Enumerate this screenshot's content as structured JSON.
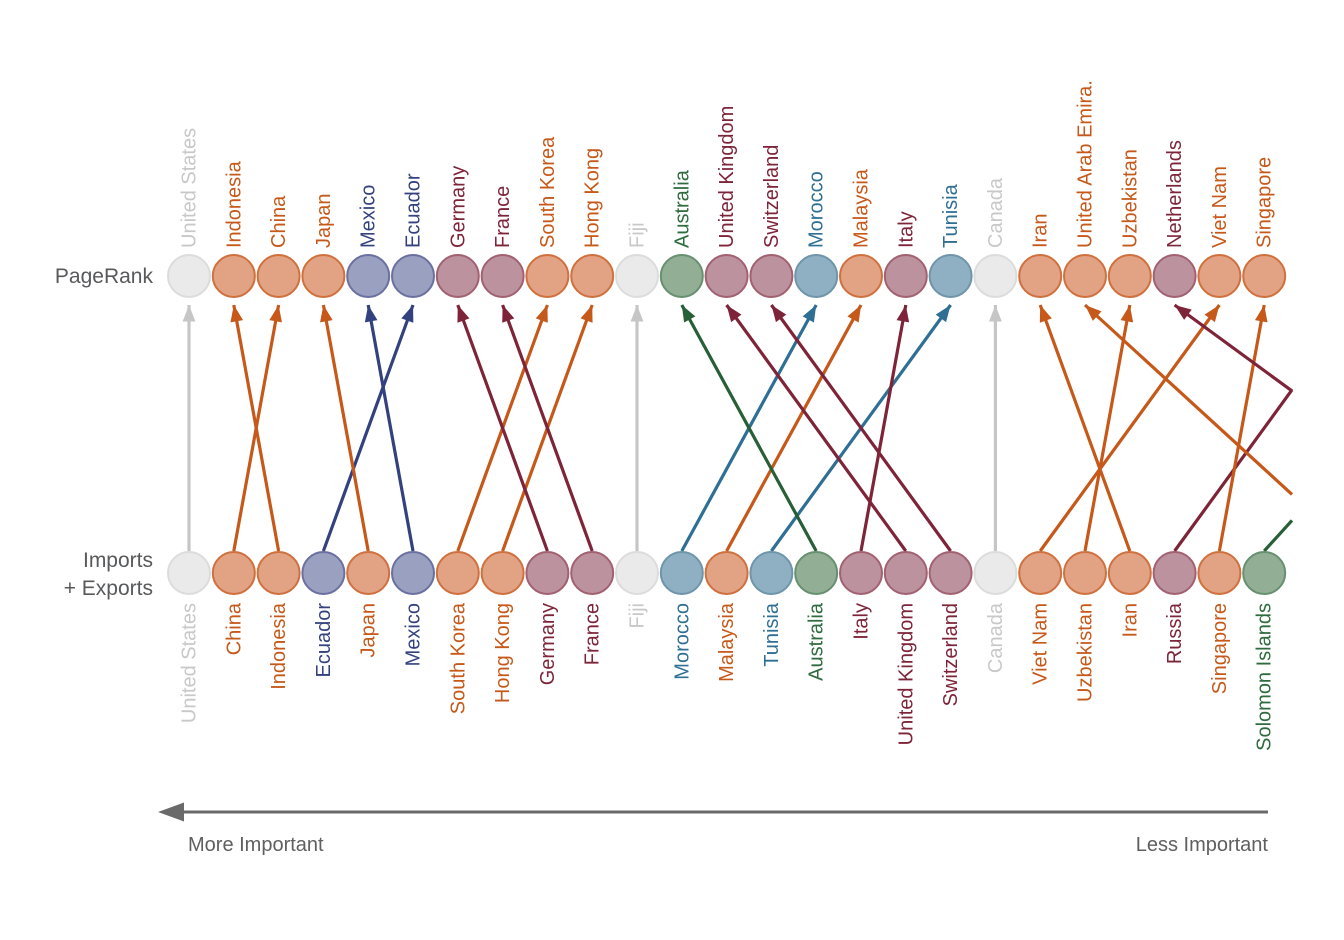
{
  "rows": {
    "top": {
      "label": "PageRank"
    },
    "bottom": {
      "label_line1": "Imports",
      "label_line2": "+ Exports"
    }
  },
  "axis": {
    "left_label": "More Important",
    "right_label": "Less Important"
  },
  "palette": {
    "orange": {
      "fill": "#E2A384",
      "stroke": "#D0703E",
      "text": "#C6591A",
      "line": "#C6591A"
    },
    "navy": {
      "fill": "#9AA0C0",
      "stroke": "#6B70A0",
      "text": "#33427F",
      "line": "#33427F"
    },
    "maroon": {
      "fill": "#BC929F",
      "stroke": "#A26170",
      "text": "#7E2438",
      "line": "#7E2438"
    },
    "teal": {
      "fill": "#8FB0C3",
      "stroke": "#6E95A9",
      "text": "#2E6F93",
      "line": "#2E6F93"
    },
    "green": {
      "fill": "#92AE94",
      "stroke": "#679070",
      "text": "#2E6B3E",
      "line": "#275F36"
    },
    "gray": {
      "fill": "#EAEAEA",
      "stroke": "#DCDCDC",
      "text": "#C8C8C8",
      "line": "#C6C6C6"
    }
  },
  "chart_data": {
    "type": "slope",
    "title": "",
    "row_labels": [
      "PageRank",
      "Imports + Exports"
    ],
    "axis_annotation": {
      "left": "More Important",
      "right": "Less Important"
    },
    "pagerank_ranking": [
      {
        "label": "United States",
        "color": "gray"
      },
      {
        "label": "Indonesia",
        "color": "orange"
      },
      {
        "label": "China",
        "color": "orange"
      },
      {
        "label": "Japan",
        "color": "orange"
      },
      {
        "label": "Mexico",
        "color": "navy"
      },
      {
        "label": "Ecuador",
        "color": "navy"
      },
      {
        "label": "Germany",
        "color": "maroon"
      },
      {
        "label": "France",
        "color": "maroon"
      },
      {
        "label": "South Korea",
        "color": "orange"
      },
      {
        "label": "Hong Kong",
        "color": "orange"
      },
      {
        "label": "Fiji",
        "color": "gray"
      },
      {
        "label": "Australia",
        "color": "green"
      },
      {
        "label": "United Kingdom",
        "color": "maroon"
      },
      {
        "label": "Switzerland",
        "color": "maroon"
      },
      {
        "label": "Morocco",
        "color": "teal"
      },
      {
        "label": "Malaysia",
        "color": "orange"
      },
      {
        "label": "Italy",
        "color": "maroon"
      },
      {
        "label": "Tunisia",
        "color": "teal"
      },
      {
        "label": "Canada",
        "color": "gray"
      },
      {
        "label": "Iran",
        "color": "orange"
      },
      {
        "label": "United Arab Emira.",
        "color": "orange"
      },
      {
        "label": "Uzbekistan",
        "color": "orange"
      },
      {
        "label": "Netherlands",
        "color": "maroon"
      },
      {
        "label": "Viet Nam",
        "color": "orange"
      },
      {
        "label": "Singapore",
        "color": "orange"
      }
    ],
    "imports_exports_ranking": [
      {
        "label": "United States",
        "color": "gray"
      },
      {
        "label": "China",
        "color": "orange"
      },
      {
        "label": "Indonesia",
        "color": "orange"
      },
      {
        "label": "Ecuador",
        "color": "navy"
      },
      {
        "label": "Japan",
        "color": "orange"
      },
      {
        "label": "Mexico",
        "color": "navy"
      },
      {
        "label": "South Korea",
        "color": "orange"
      },
      {
        "label": "Hong Kong",
        "color": "orange"
      },
      {
        "label": "Germany",
        "color": "maroon"
      },
      {
        "label": "France",
        "color": "maroon"
      },
      {
        "label": "Fiji",
        "color": "gray"
      },
      {
        "label": "Morocco",
        "color": "teal"
      },
      {
        "label": "Malaysia",
        "color": "orange"
      },
      {
        "label": "Tunisia",
        "color": "teal"
      },
      {
        "label": "Australia",
        "color": "green"
      },
      {
        "label": "Italy",
        "color": "maroon"
      },
      {
        "label": "United Kingdom",
        "color": "maroon"
      },
      {
        "label": "Switzerland",
        "color": "maroon"
      },
      {
        "label": "Canada",
        "color": "gray"
      },
      {
        "label": "Viet Nam",
        "color": "orange"
      },
      {
        "label": "Uzbekistan",
        "color": "orange"
      },
      {
        "label": "Iran",
        "color": "orange"
      },
      {
        "label": "Russia",
        "color": "maroon"
      },
      {
        "label": "Singapore",
        "color": "orange"
      },
      {
        "label": "Solomon Islands",
        "color": "green"
      }
    ],
    "links": [
      {
        "country": "United States",
        "color": "gray",
        "from": 1,
        "to": 1
      },
      {
        "country": "China",
        "color": "orange",
        "from": 2,
        "to": 3
      },
      {
        "country": "Indonesia",
        "color": "orange",
        "from": 3,
        "to": 2
      },
      {
        "country": "Ecuador",
        "color": "navy",
        "from": 4,
        "to": 6
      },
      {
        "country": "Japan",
        "color": "orange",
        "from": 5,
        "to": 4
      },
      {
        "country": "Mexico",
        "color": "navy",
        "from": 6,
        "to": 5
      },
      {
        "country": "South Korea",
        "color": "orange",
        "from": 7,
        "to": 9
      },
      {
        "country": "Hong Kong",
        "color": "orange",
        "from": 8,
        "to": 10
      },
      {
        "country": "Germany",
        "color": "maroon",
        "from": 9,
        "to": 7
      },
      {
        "country": "France",
        "color": "maroon",
        "from": 10,
        "to": 8
      },
      {
        "country": "Fiji",
        "color": "gray",
        "from": 11,
        "to": 11
      },
      {
        "country": "Morocco",
        "color": "teal",
        "from": 12,
        "to": 15
      },
      {
        "country": "Malaysia",
        "color": "orange",
        "from": 13,
        "to": 16
      },
      {
        "country": "Tunisia",
        "color": "teal",
        "from": 14,
        "to": 18
      },
      {
        "country": "Australia",
        "color": "green",
        "from": 15,
        "to": 12
      },
      {
        "country": "Italy",
        "color": "maroon",
        "from": 16,
        "to": 17
      },
      {
        "country": "United Kingdom",
        "color": "maroon",
        "from": 17,
        "to": 13
      },
      {
        "country": "Switzerland",
        "color": "maroon",
        "from": 18,
        "to": 14
      },
      {
        "country": "Canada",
        "color": "gray",
        "from": 19,
        "to": 19
      },
      {
        "country": "Viet Nam",
        "color": "orange",
        "from": 20,
        "to": 24
      },
      {
        "country": "Uzbekistan",
        "color": "orange",
        "from": 21,
        "to": 22
      },
      {
        "country": "Iran",
        "color": "orange",
        "from": 22,
        "to": 20
      },
      {
        "country": "Russia",
        "color": "maroon",
        "from": 23,
        "to": 27,
        "offchart": "to"
      },
      {
        "country": "Singapore",
        "color": "orange",
        "from": 24,
        "to": 25
      },
      {
        "country": "Solomon Islands",
        "color": "green",
        "from": 25,
        "to": 30,
        "offchart": "to"
      },
      {
        "country": "United Arab Emira.",
        "color": "orange",
        "from": 27,
        "to": 21,
        "offchart": "from"
      },
      {
        "country": "Netherlands",
        "color": "maroon",
        "from": 30.5,
        "to": 23,
        "offchart": "from"
      }
    ]
  }
}
